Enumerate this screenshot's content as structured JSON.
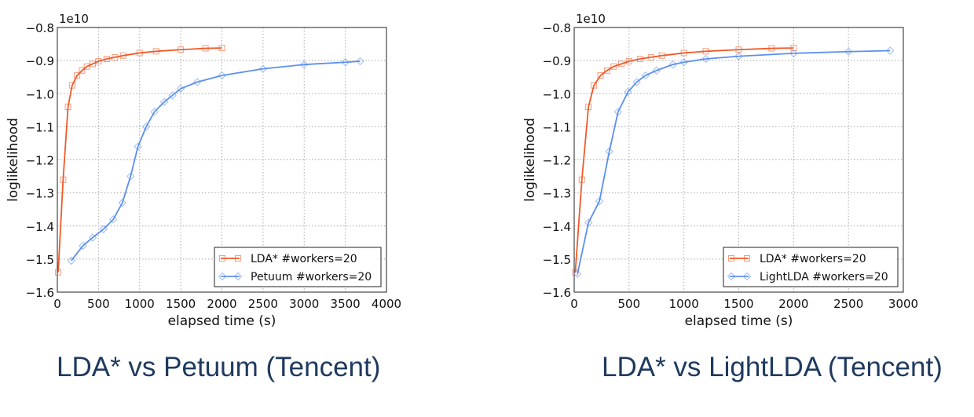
{
  "colors": {
    "lda": "#f05a28",
    "other": "#5b8ff0",
    "caption": "#1f3a5f"
  },
  "chart_data": [
    {
      "type": "line",
      "caption": "LDA* vs Petuum (Tencent)",
      "xlabel": "elapsed time (s)",
      "ylabel": "loglikelihood",
      "y_multiplier": "1e10",
      "xlim": [
        0,
        4000
      ],
      "ylim": [
        -1.6,
        -0.8
      ],
      "xticks": [
        "0",
        "500",
        "1000",
        "1500",
        "2000",
        "2500",
        "3000",
        "3500",
        "4000"
      ],
      "yticks": [
        "−0.8",
        "−0.9",
        "−1.0",
        "−1.1",
        "−1.2",
        "−1.3",
        "−1.4",
        "−1.5",
        "−1.6"
      ],
      "grid": true,
      "legend_position": "bottom-right",
      "series": [
        {
          "name": "LDA* #workers=20",
          "marker": "square",
          "color": "lda",
          "x": [
            10,
            70,
            130,
            180,
            240,
            300,
            360,
            430,
            500,
            600,
            700,
            800,
            1000,
            1200,
            1500,
            1800,
            2000
          ],
          "y": [
            -1.54,
            -1.26,
            -1.04,
            -0.975,
            -0.945,
            -0.93,
            -0.918,
            -0.91,
            -0.902,
            -0.895,
            -0.89,
            -0.885,
            -0.877,
            -0.872,
            -0.867,
            -0.863,
            -0.862
          ]
        },
        {
          "name": "Petuum #workers=20",
          "marker": "diamond",
          "color": "other",
          "x": [
            170,
            310,
            430,
            560,
            680,
            790,
            890,
            980,
            1080,
            1180,
            1300,
            1400,
            1500,
            1700,
            2000,
            2500,
            3000,
            3500,
            3680
          ],
          "y": [
            -1.505,
            -1.46,
            -1.435,
            -1.41,
            -1.38,
            -1.33,
            -1.25,
            -1.16,
            -1.1,
            -1.055,
            -1.025,
            -1.005,
            -0.985,
            -0.965,
            -0.945,
            -0.925,
            -0.912,
            -0.905,
            -0.902
          ]
        }
      ]
    },
    {
      "type": "line",
      "caption": "LDA* vs LightLDA (Tencent)",
      "xlabel": "elapsed time (s)",
      "ylabel": "loglikelihood",
      "y_multiplier": "1e10",
      "xlim": [
        0,
        3000
      ],
      "ylim": [
        -1.6,
        -0.8
      ],
      "xticks": [
        "0",
        "500",
        "1000",
        "1500",
        "2000",
        "2500",
        "3000"
      ],
      "yticks": [
        "−0.8",
        "−0.9",
        "−1.0",
        "−1.1",
        "−1.2",
        "−1.3",
        "−1.4",
        "−1.5",
        "−1.6"
      ],
      "grid": true,
      "legend_position": "bottom-right",
      "series": [
        {
          "name": "LDA* #workers=20",
          "marker": "square",
          "color": "lda",
          "x": [
            10,
            70,
            130,
            180,
            240,
            300,
            360,
            430,
            500,
            600,
            700,
            800,
            1000,
            1200,
            1500,
            1800,
            2000
          ],
          "y": [
            -1.54,
            -1.26,
            -1.04,
            -0.975,
            -0.945,
            -0.93,
            -0.918,
            -0.91,
            -0.902,
            -0.895,
            -0.89,
            -0.885,
            -0.877,
            -0.872,
            -0.867,
            -0.863,
            -0.862
          ]
        },
        {
          "name": "LightLDA #workers=20",
          "marker": "diamond",
          "color": "other",
          "x": [
            30,
            130,
            230,
            320,
            400,
            490,
            570,
            650,
            750,
            900,
            1000,
            1200,
            1500,
            2000,
            2500,
            2880
          ],
          "y": [
            -1.545,
            -1.39,
            -1.325,
            -1.175,
            -1.055,
            -0.995,
            -0.965,
            -0.945,
            -0.93,
            -0.912,
            -0.905,
            -0.895,
            -0.887,
            -0.878,
            -0.873,
            -0.87
          ]
        }
      ]
    }
  ]
}
